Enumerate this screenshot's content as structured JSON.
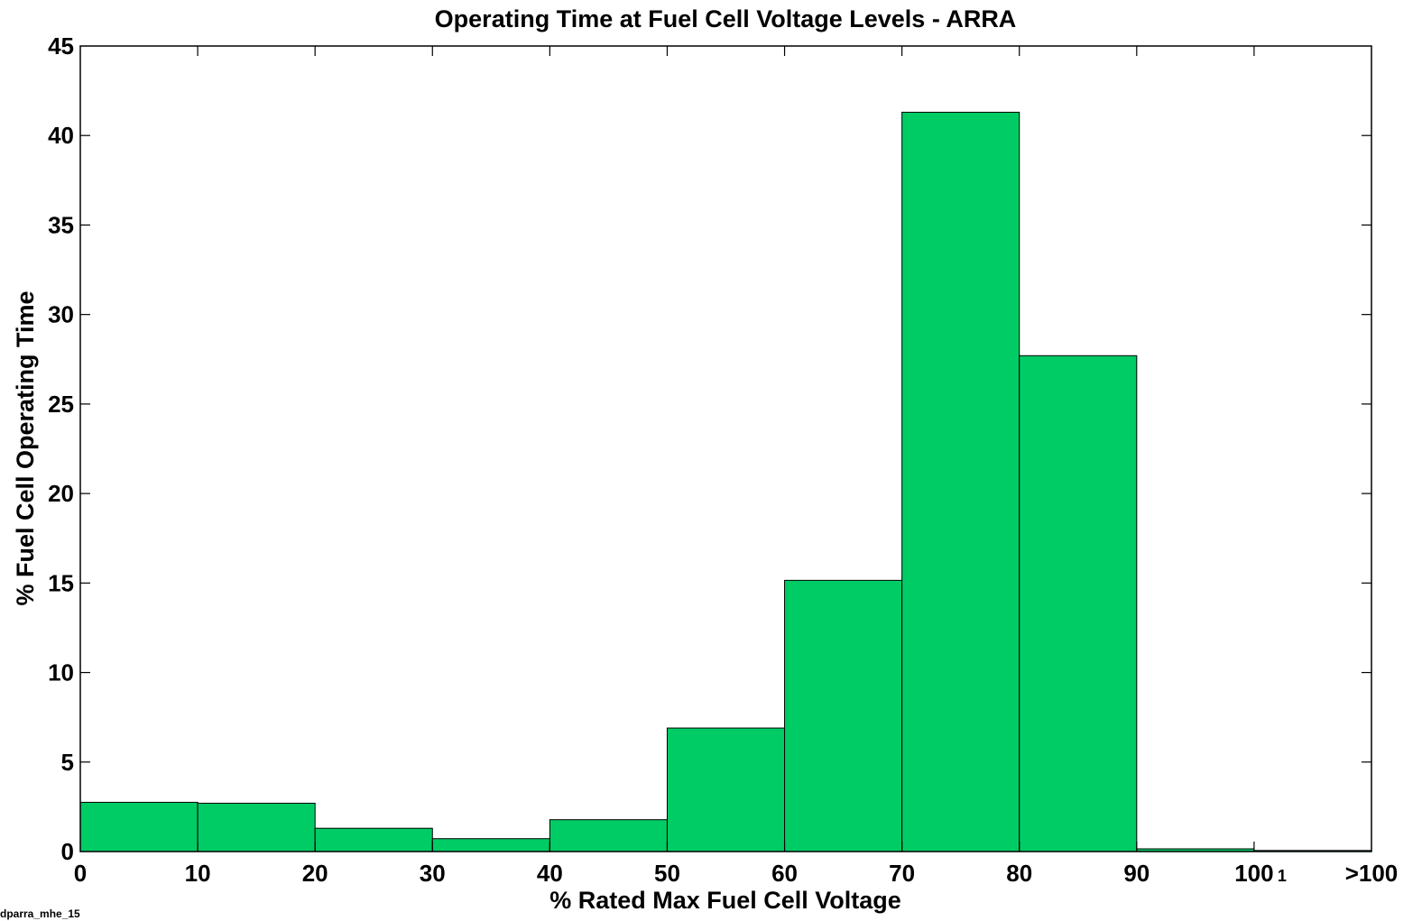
{
  "chart_data": {
    "type": "bar",
    "title": "Operating Time at Fuel Cell Voltage Levels - ARRA",
    "xlabel": "% Rated Max Fuel Cell Voltage",
    "ylabel": "% Fuel Cell Operating Time",
    "bin_edges": [
      0,
      10,
      20,
      30,
      40,
      50,
      60,
      70,
      80,
      90,
      100,
      110
    ],
    "x_tick_labels": [
      "0",
      "10",
      "20",
      "30",
      "40",
      "50",
      "60",
      "70",
      "80",
      "90",
      "100",
      ">100"
    ],
    "x_tick_marker": "1",
    "values": [
      2.75,
      2.7,
      1.3,
      0.72,
      1.78,
      6.9,
      15.15,
      41.3,
      27.7,
      0.15,
      0.06
    ],
    "ylim": [
      0,
      45
    ],
    "yticks": [
      0,
      5,
      10,
      15,
      20,
      25,
      30,
      35,
      40,
      45
    ],
    "bar_color": "#00cc66",
    "grid": false,
    "legend": "none"
  },
  "footer_note": "dparra_mhe_15"
}
